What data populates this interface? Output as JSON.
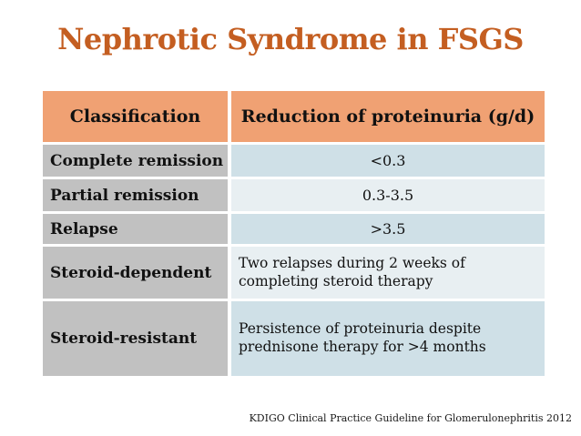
{
  "slide": {
    "title": "Nephrotic Syndrome in FSGS",
    "footer": "KDIGO Clinical Practice Guideline for Glomerulonephritis 2012"
  },
  "table": {
    "headers": [
      "Classification",
      "Reduction of proteinuria (g/d)"
    ],
    "rows": [
      {
        "classification": "Complete remission",
        "value": "<0.3"
      },
      {
        "classification": "Partial remission",
        "value": "0.3-3.5"
      },
      {
        "classification": "Relapse",
        "value": ">3.5"
      },
      {
        "classification": "Steroid-dependent",
        "value": "Two relapses during 2 weeks of completing steroid therapy"
      },
      {
        "classification": "Steroid-resistant",
        "value": "Persistence of proteinuria despite prednisone therapy for >4 months"
      }
    ]
  },
  "colors": {
    "title_orange": "#C45E21",
    "header_bg": "#F0A173",
    "label_bg": "#C1C1C1",
    "band_dark": "#CFE0E7",
    "band_light": "#E8EFF2",
    "text": "#111111",
    "background": "#FFFFFF"
  }
}
